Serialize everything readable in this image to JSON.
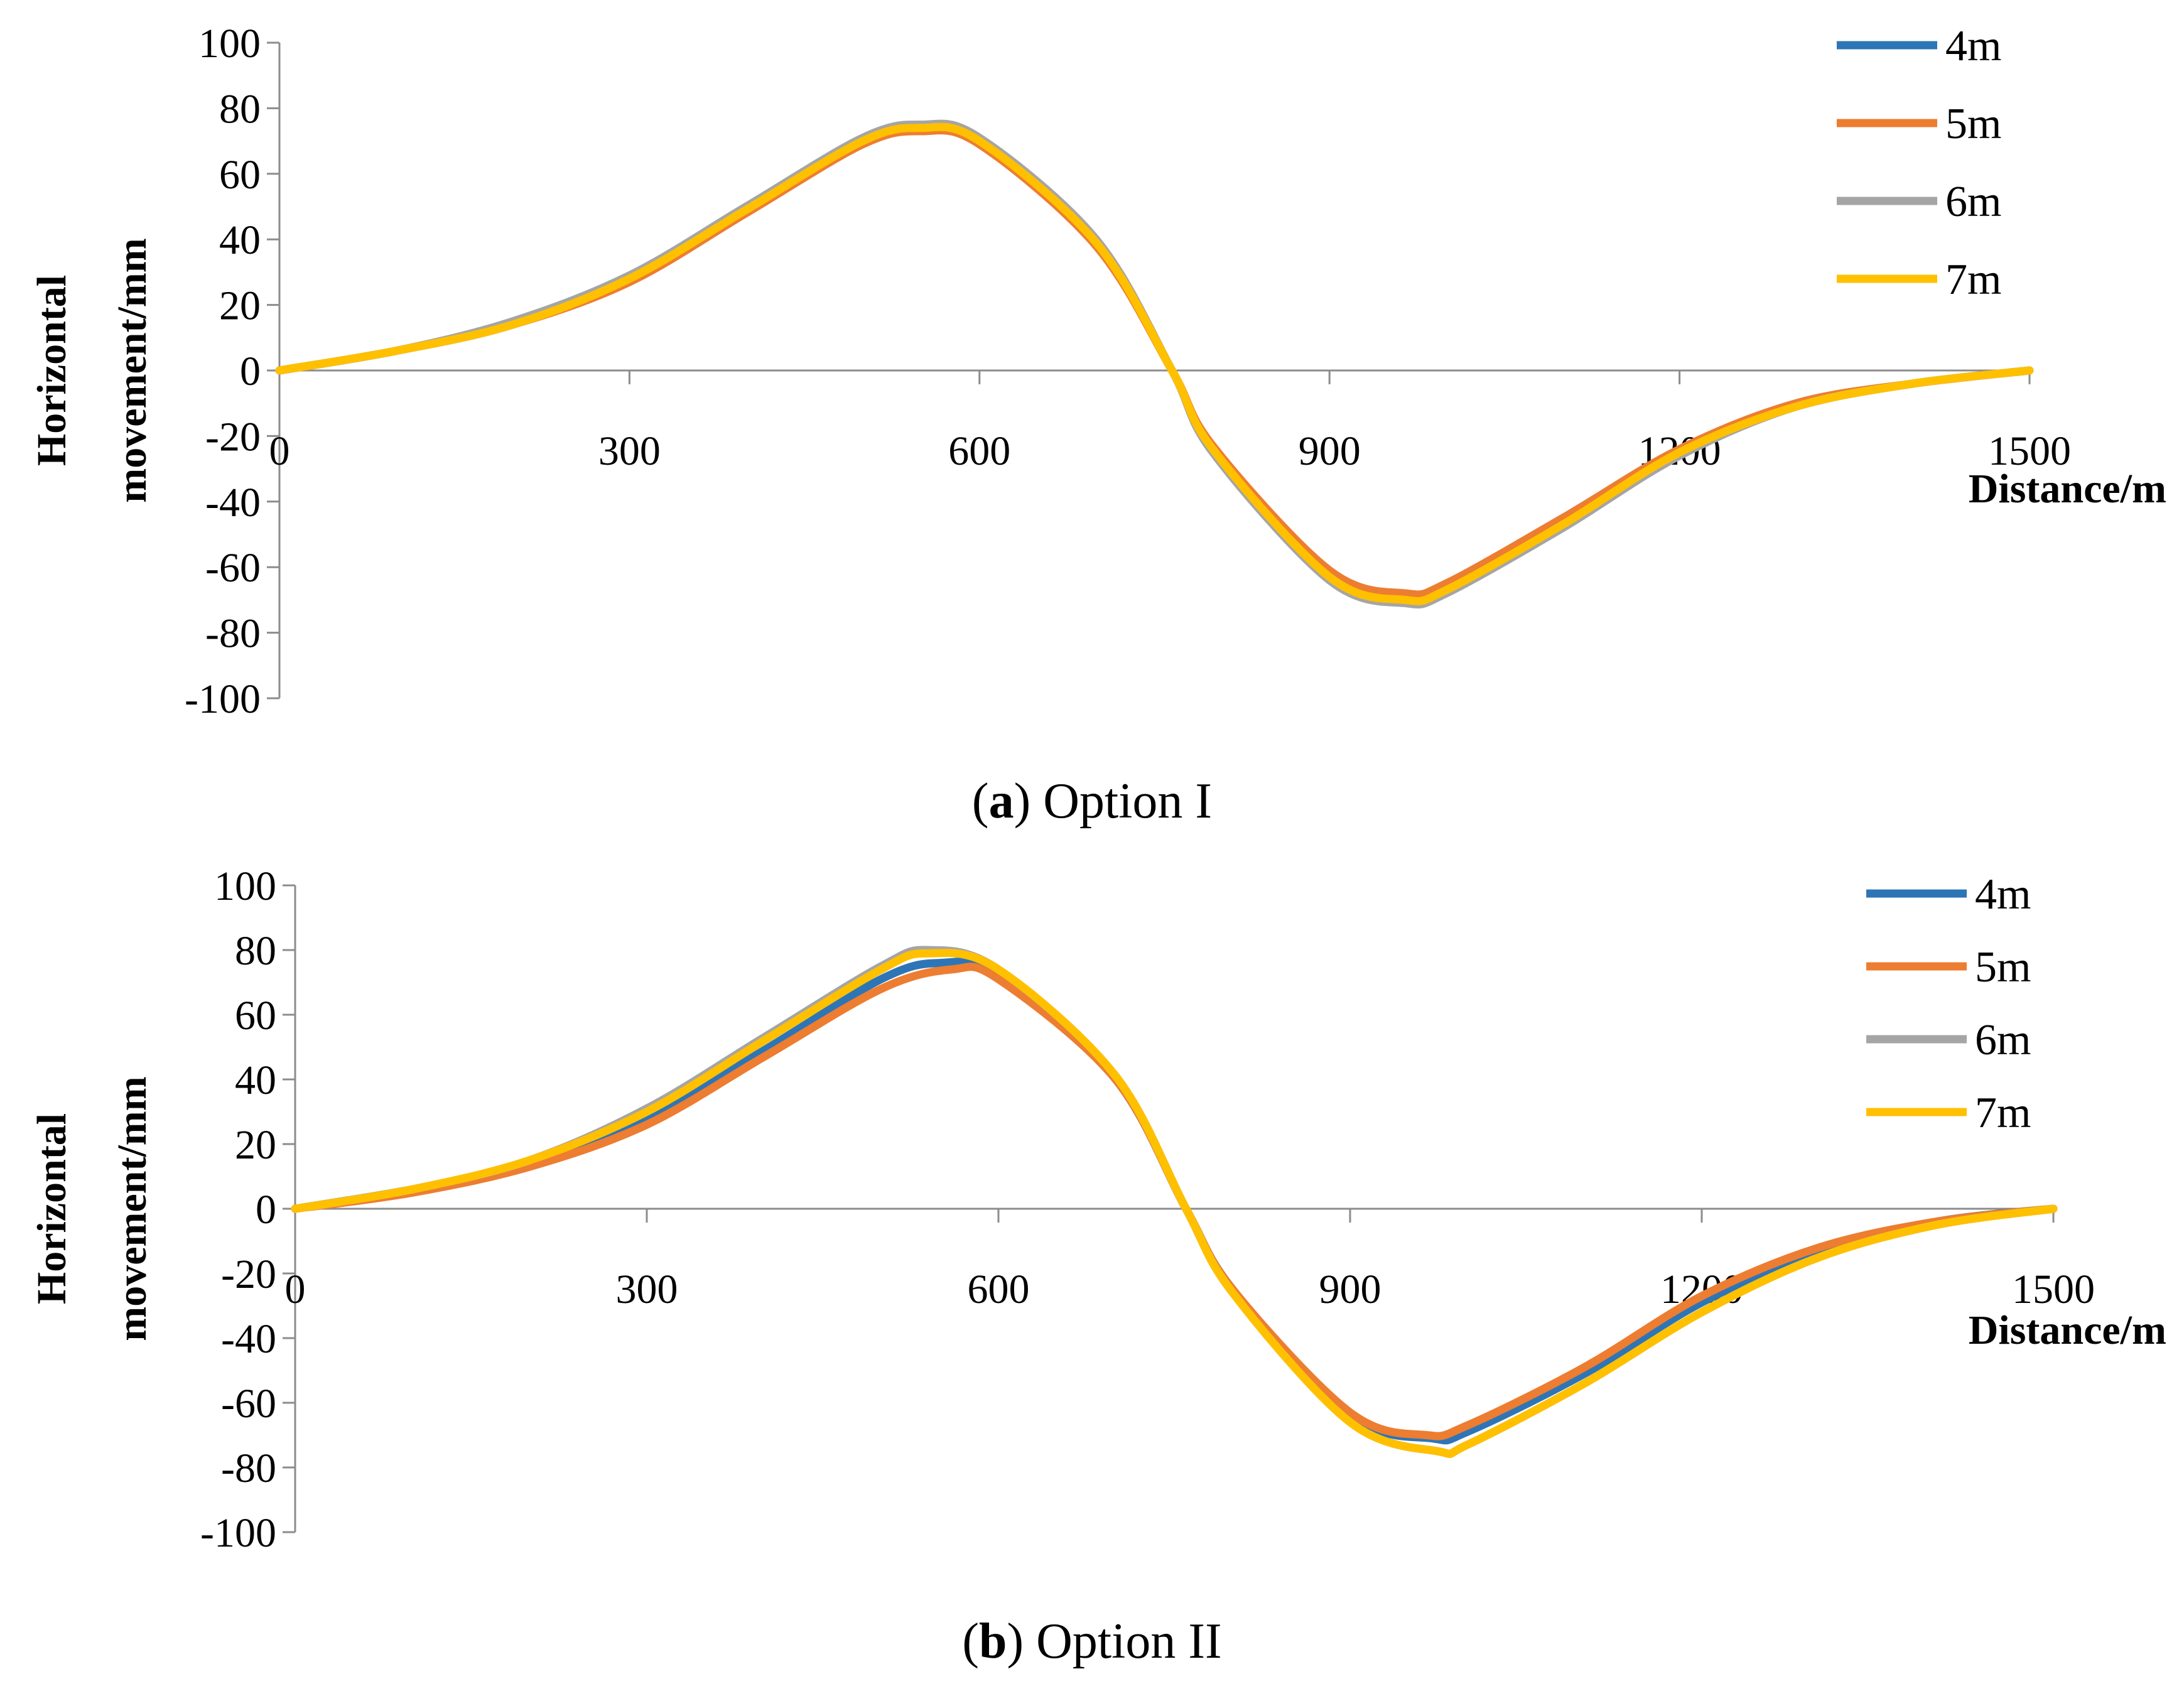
{
  "chart_data": [
    {
      "type": "line",
      "panel": "a",
      "caption_letter": "a",
      "caption_text": "Option I",
      "xlabel": "Distance/m",
      "ylabel_line1": "Horizontal",
      "ylabel_line2": "movement/mm",
      "xlim": [
        0,
        1500
      ],
      "ylim": [
        -100,
        100
      ],
      "xticks": [
        "0",
        "300",
        "600",
        "900",
        "1200",
        "1500"
      ],
      "yticks": [
        "100",
        "80",
        "60",
        "40",
        "20",
        "0",
        "-20",
        "-40",
        "-60",
        "-80",
        "-100"
      ],
      "legend_position": "top-right",
      "series": [
        {
          "name": "4m",
          "color": "#2E75B6",
          "x": [
            0,
            100,
            200,
            300,
            400,
            500,
            550,
            600,
            700,
            765,
            800,
            900,
            965,
            1000,
            1100,
            1200,
            1300,
            1400,
            1500
          ],
          "y": [
            0,
            6,
            14,
            28,
            49,
            70,
            74,
            70,
            39,
            0,
            -24,
            -63,
            -70,
            -67,
            -47,
            -25,
            -11,
            -4,
            0
          ]
        },
        {
          "name": "5m",
          "color": "#ED7D31",
          "x": [
            0,
            100,
            200,
            300,
            400,
            500,
            550,
            600,
            700,
            765,
            800,
            900,
            965,
            1000,
            1100,
            1200,
            1300,
            1400,
            1500
          ],
          "y": [
            0,
            6,
            14,
            27,
            48,
            69,
            73,
            69,
            38,
            0,
            -23,
            -61,
            -68,
            -65,
            -45,
            -24,
            -10,
            -4,
            0
          ]
        },
        {
          "name": "6m",
          "color": "#A5A5A5",
          "x": [
            0,
            100,
            200,
            300,
            400,
            500,
            550,
            600,
            700,
            765,
            800,
            900,
            965,
            1000,
            1100,
            1200,
            1300,
            1400,
            1500
          ],
          "y": [
            0,
            6,
            15,
            29,
            50,
            71,
            75,
            71,
            40,
            0,
            -25,
            -64,
            -71,
            -68,
            -48,
            -26,
            -11,
            -4,
            0
          ]
        },
        {
          "name": "7m",
          "color": "#FFC000",
          "x": [
            0,
            100,
            200,
            300,
            400,
            500,
            550,
            600,
            700,
            765,
            800,
            900,
            965,
            1000,
            1100,
            1200,
            1300,
            1400,
            1500
          ],
          "y": [
            0,
            6,
            14,
            28,
            49,
            70,
            74,
            70,
            39,
            0,
            -24,
            -63,
            -70,
            -67,
            -47,
            -25,
            -11,
            -4,
            0
          ]
        }
      ]
    },
    {
      "type": "line",
      "panel": "b",
      "caption_letter": "b",
      "caption_text": "Option II",
      "xlabel": "Distance/m",
      "ylabel_line1": "Horizontal",
      "ylabel_line2": "movement/mm",
      "xlim": [
        0,
        1500
      ],
      "ylim": [
        -100,
        100
      ],
      "xticks": [
        "0",
        "300",
        "600",
        "900",
        "1200",
        "1500"
      ],
      "yticks": [
        "100",
        "80",
        "60",
        "40",
        "20",
        "0",
        "-20",
        "-40",
        "-60",
        "-80",
        "-100"
      ],
      "legend_position": "top-right",
      "series": [
        {
          "name": "4m",
          "color": "#2E75B6",
          "x": [
            0,
            100,
            200,
            300,
            400,
            500,
            550,
            600,
            700,
            760,
            800,
            900,
            970,
            1000,
            1100,
            1200,
            1300,
            1400,
            1500
          ],
          "y": [
            0,
            6,
            14,
            28,
            49,
            71,
            76,
            72,
            40,
            0,
            -25,
            -64,
            -71,
            -69,
            -51,
            -29,
            -13,
            -4,
            0
          ]
        },
        {
          "name": "5m",
          "color": "#ED7D31",
          "x": [
            0,
            100,
            200,
            300,
            400,
            500,
            560,
            600,
            700,
            760,
            800,
            900,
            965,
            1000,
            1100,
            1200,
            1300,
            1400,
            1500
          ],
          "y": [
            0,
            5,
            13,
            26,
            47,
            68,
            74,
            71,
            40,
            0,
            -25,
            -63,
            -70,
            -67,
            -49,
            -27,
            -12,
            -4,
            0
          ]
        },
        {
          "name": "6m",
          "color": "#A5A5A5",
          "x": [
            0,
            100,
            200,
            300,
            400,
            500,
            540,
            600,
            700,
            760,
            800,
            900,
            975,
            1000,
            1100,
            1200,
            1300,
            1400,
            1500
          ],
          "y": [
            0,
            6,
            15,
            31,
            53,
            75,
            80,
            74,
            41,
            0,
            -26,
            -66,
            -75,
            -73,
            -54,
            -32,
            -15,
            -5,
            0
          ]
        },
        {
          "name": "7m",
          "color": "#FFC000",
          "x": [
            0,
            100,
            200,
            300,
            400,
            500,
            540,
            600,
            700,
            760,
            800,
            900,
            975,
            1000,
            1100,
            1200,
            1300,
            1400,
            1500
          ],
          "y": [
            0,
            6,
            15,
            30,
            52,
            74,
            79,
            74,
            41,
            0,
            -26,
            -66,
            -75,
            -73,
            -54,
            -32,
            -15,
            -5,
            0
          ]
        }
      ]
    }
  ]
}
